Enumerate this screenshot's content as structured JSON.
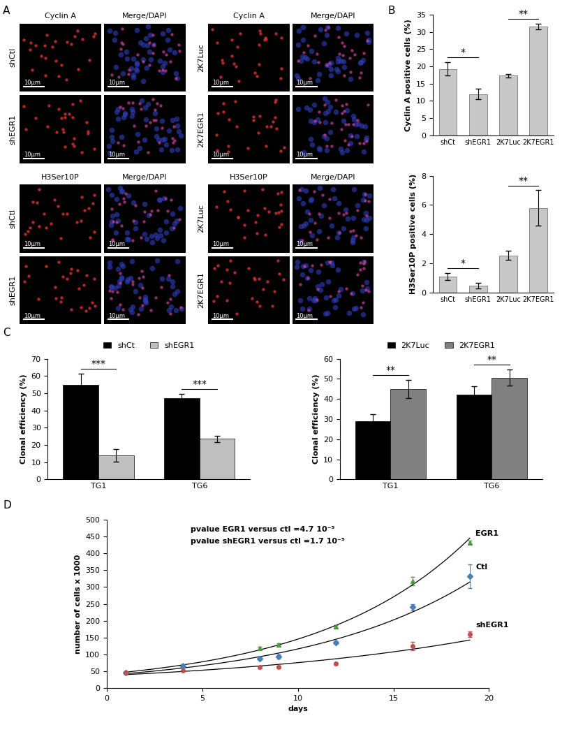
{
  "panel_labels": [
    "A",
    "B",
    "C",
    "D"
  ],
  "micrographs": {
    "scale_bar": "10µm",
    "groups": [
      {
        "blocks": [
          {
            "headers": [
              "Cyclin A",
              "Merge/DAPI"
            ],
            "rows": [
              "shCtl",
              "shEGR1"
            ]
          },
          {
            "headers": [
              "H3Ser10P",
              "Merge/DAPI"
            ],
            "rows": [
              "shCtl",
              "shEGR1"
            ]
          }
        ]
      },
      {
        "blocks": [
          {
            "headers": [
              "Cyclin A",
              "Merge/DAPI"
            ],
            "rows": [
              "2K7Luc",
              "2K7EGR1"
            ]
          },
          {
            "headers": [
              "H3Ser10P",
              "Merge/DAPI"
            ],
            "rows": [
              "2K7Luc",
              "2K7EGR1"
            ]
          }
        ]
      }
    ]
  },
  "chart_data": [
    {
      "type": "bar",
      "categories": [
        "shCt",
        "shEGR1",
        "2K7Luc",
        "2K7EGR1"
      ],
      "values": [
        19.3,
        12.0,
        17.3,
        31.5
      ],
      "errors": [
        2.0,
        1.5,
        0.5,
        0.8
      ],
      "color": "#c8c8c8",
      "ylabel": "Cyclin A positive cells (%)",
      "ylim": [
        0,
        35
      ],
      "yticks": [
        0,
        5,
        10,
        15,
        20,
        25,
        30,
        35
      ],
      "significance": [
        {
          "between": [
            "shCt",
            "shEGR1"
          ],
          "label": "*"
        },
        {
          "between": [
            "2K7Luc",
            "2K7EGR1"
          ],
          "label": "**"
        }
      ]
    },
    {
      "type": "bar",
      "categories": [
        "shCt",
        "shEGR1",
        "2K7Luc",
        "2K7EGR1"
      ],
      "values": [
        1.1,
        0.5,
        2.55,
        5.8
      ],
      "errors": [
        0.25,
        0.2,
        0.3,
        1.2
      ],
      "color": "#c8c8c8",
      "ylabel": "H3Ser10P positive cells (%)",
      "ylim": [
        0,
        8
      ],
      "yticks": [
        0,
        2,
        4,
        6,
        8
      ],
      "significance": [
        {
          "between": [
            "shCt",
            "shEGR1"
          ],
          "label": "*"
        },
        {
          "between": [
            "2K7Luc",
            "2K7EGR1"
          ],
          "label": "**"
        }
      ]
    },
    {
      "type": "bar",
      "categories": [
        "TG1",
        "TG6"
      ],
      "series": [
        {
          "name": "shCt",
          "color": "#000000",
          "values": [
            55,
            47.3
          ],
          "errors": [
            6.5,
            2.3
          ]
        },
        {
          "name": "shEGR1",
          "color": "#bfbfbf",
          "values": [
            14,
            23.5
          ],
          "errors": [
            3.5,
            1.8
          ]
        }
      ],
      "legend": "top",
      "ylabel": "Clonal efficiency (%)",
      "ylim": [
        0,
        70
      ],
      "yticks": [
        0,
        10,
        20,
        30,
        40,
        50,
        60,
        70
      ],
      "significance": [
        {
          "category": "TG1",
          "label": "***"
        },
        {
          "category": "TG6",
          "label": "***"
        }
      ]
    },
    {
      "type": "bar",
      "categories": [
        "TG1",
        "TG6"
      ],
      "series": [
        {
          "name": "2K7Luc",
          "color": "#000000",
          "values": [
            29,
            42
          ],
          "errors": [
            3.5,
            4.3
          ]
        },
        {
          "name": "2K7EGR1",
          "color": "#808080",
          "values": [
            45,
            50.5
          ],
          "errors": [
            4.5,
            4.0
          ]
        }
      ],
      "legend": "top",
      "ylabel": "Clonal efficiency (%)",
      "ylim": [
        0,
        60
      ],
      "yticks": [
        0,
        10,
        20,
        30,
        40,
        50,
        60
      ],
      "significance": [
        {
          "category": "TG1",
          "label": "**"
        },
        {
          "category": "TG6",
          "label": "**"
        }
      ]
    },
    {
      "type": "scatter",
      "x": [
        1,
        4,
        8,
        9,
        12,
        16,
        19
      ],
      "series": [
        {
          "name": "EGR1",
          "color": "#4e9a3c",
          "marker": "triangle",
          "line_style": "solid",
          "values": [
            47,
            68,
            118,
            128,
            183,
            318,
            432
          ],
          "errors": [
            3,
            3,
            4,
            4,
            4,
            12,
            5
          ]
        },
        {
          "name": "Ctl",
          "color": "#4a7ebb",
          "marker": "diamond",
          "line_style": "solid",
          "values": [
            45,
            65,
            88,
            93,
            135,
            240,
            332
          ],
          "errors": [
            3,
            5,
            5,
            6,
            5,
            10,
            35
          ]
        },
        {
          "name": "shEGR1",
          "color": "#c0504d",
          "marker": "circle",
          "line_style": "solid",
          "values": [
            45,
            52,
            62,
            63,
            72,
            125,
            160
          ],
          "errors": [
            3,
            3,
            3,
            3,
            3,
            12,
            8
          ]
        }
      ],
      "xlabel": "days",
      "ylabel": "number of cells x 1000",
      "xlim": [
        0,
        20
      ],
      "xticks": [
        0,
        5,
        10,
        15,
        20
      ],
      "ylim": [
        0,
        500
      ],
      "yticks": [
        0,
        50,
        100,
        150,
        200,
        250,
        300,
        350,
        400,
        450,
        500
      ],
      "annotations": [
        "pvalue EGR1 versus ctl =4.7 10⁻⁵",
        "pvalue shEGR1 versus ctl =1.7 10⁻⁵"
      ]
    }
  ]
}
